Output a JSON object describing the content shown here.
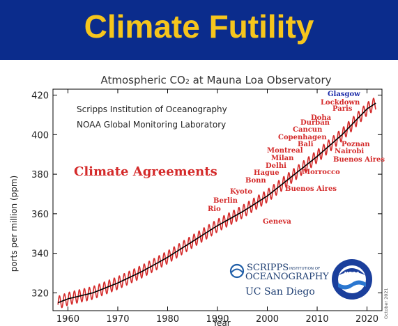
{
  "banner": {
    "title": "Climate Futility"
  },
  "chart_data": {
    "type": "line",
    "title": "Atmospheric CO₂ at Mauna Loa Observatory",
    "subtitle_lines": [
      "Scripps Institution of Oceanography",
      "NOAA Global Monitoring Laboratory"
    ],
    "xlabel": "Year",
    "ylabel": "ports per million (ppm)",
    "xlim": [
      1957,
      2023
    ],
    "ylim": [
      311,
      423
    ],
    "xticks": [
      1960,
      1970,
      1980,
      1990,
      2000,
      2010,
      2020
    ],
    "yticks": [
      320,
      340,
      360,
      380,
      400,
      420
    ],
    "grid": false,
    "series": [
      {
        "role": "monthly",
        "color": "#d42a2a",
        "seasonal_amplitude_ppm": 3.2,
        "x": [
          1958,
          1960,
          1965,
          1970,
          1975,
          1980,
          1985,
          1990,
          1995,
          2000,
          2005,
          2010,
          2015,
          2020,
          2021.8
        ],
        "y": [
          315,
          317,
          320,
          325,
          331,
          338,
          346,
          354,
          361,
          369,
          379,
          389,
          400,
          413,
          416
        ]
      },
      {
        "role": "trend",
        "color": "#000000",
        "x": [
          1958,
          1960,
          1965,
          1970,
          1975,
          1980,
          1985,
          1990,
          1995,
          2000,
          2005,
          2010,
          2015,
          2020,
          2021.8
        ],
        "y": [
          315,
          317,
          320,
          325,
          331,
          338,
          346,
          354,
          361,
          369,
          379,
          389,
          400,
          413,
          416
        ]
      }
    ],
    "annotations": {
      "heading": {
        "text": "Climate Agreements",
        "color": "#d42a2a"
      },
      "agreements": [
        {
          "label": "Rio",
          "year": 1992
        },
        {
          "label": "Berlin",
          "year": 1995
        },
        {
          "label": "Kyoto",
          "year": 1997
        },
        {
          "label": "Geneva",
          "year": 1996
        },
        {
          "label": "Bonn",
          "year": 1999
        },
        {
          "label": "Hague",
          "year": 2000
        },
        {
          "label": "Buenos Aires",
          "year": 1998
        },
        {
          "label": "Delhi",
          "year": 2002
        },
        {
          "label": "Milan",
          "year": 2003
        },
        {
          "label": "Montreal",
          "year": 2005
        },
        {
          "label": "Morrocco",
          "year": 2001
        },
        {
          "label": "Bali",
          "year": 2007
        },
        {
          "label": "Copenhagen",
          "year": 2009
        },
        {
          "label": "Cancun",
          "year": 2010
        },
        {
          "label": "Durban",
          "year": 2011
        },
        {
          "label": "Doha",
          "year": 2012
        },
        {
          "label": "Paris",
          "year": 2015
        },
        {
          "label": "Lockdown",
          "year": 2020
        },
        {
          "label": "Glasgow",
          "year": 2021,
          "color": "#1a2aa8"
        },
        {
          "label": "Poznan",
          "year": 2008
        },
        {
          "label": "Nairobi",
          "year": 2006
        },
        {
          "label": "Buenos Aires",
          "year": 2004
        }
      ]
    },
    "logos": {
      "scripps_line1": "SCRIPPS",
      "scripps_line1_small": "INSTITUTION OF",
      "scripps_line2": "OCEANOGRAPHY",
      "ucsd": "UC San Diego",
      "noaa": "NOAA"
    },
    "side_note": "October 2021"
  }
}
